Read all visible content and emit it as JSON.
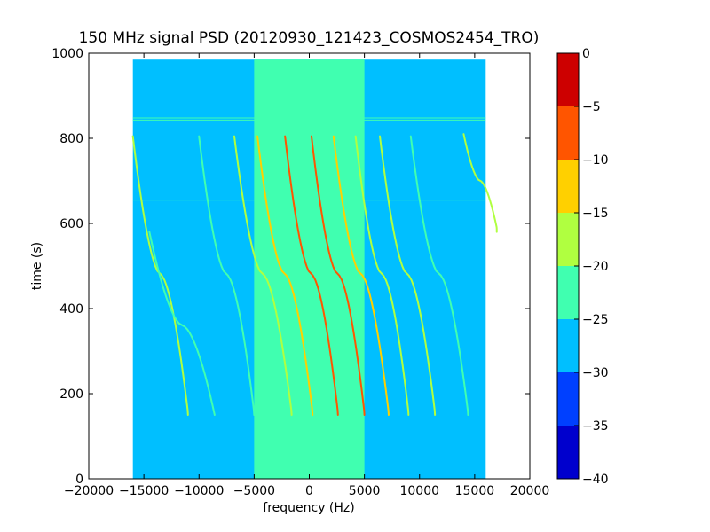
{
  "chart_data": {
    "type": "heatmap",
    "title": "150 MHz signal PSD (20120930_121423_COSMOS2454_TRO)",
    "xlabel": "frequency (Hz)",
    "ylabel": "time (s)",
    "xlim": [
      -20000,
      20000
    ],
    "ylim": [
      0,
      1000
    ],
    "xticks": [
      -20000,
      -15000,
      -10000,
      -5000,
      0,
      5000,
      10000,
      15000,
      20000
    ],
    "xtick_labels": [
      "−20000",
      "−15000",
      "−10000",
      "−5000",
      "0",
      "5000",
      "10000",
      "15000",
      "20000"
    ],
    "yticks": [
      0,
      200,
      400,
      600,
      800,
      1000
    ],
    "ytick_labels": [
      "0",
      "200",
      "400",
      "600",
      "800",
      "1000"
    ],
    "data_extent": {
      "x": [
        -16000,
        16000
      ],
      "y": [
        0,
        985
      ]
    },
    "background_level": -27.5,
    "central_band": {
      "x_range": [
        -5000,
        5000
      ],
      "level": -22.5
    },
    "colorbar": {
      "levels": [
        -40,
        -35,
        -30,
        -25,
        -20,
        -15,
        -10,
        -5,
        0
      ],
      "tick_labels": [
        "−40",
        "−35",
        "−30",
        "−25",
        "−20",
        "−15",
        "−10",
        "−5",
        "0"
      ],
      "colors": [
        "#0000cd",
        "#0040ff",
        "#00bfff",
        "#40ffb0",
        "#b0ff40",
        "#ffd000",
        "#ff5500",
        "#cd0000"
      ]
    },
    "horizontal_lines": [
      {
        "y": 655,
        "level": -22.5
      },
      {
        "y": 848,
        "level": -22.5
      },
      {
        "y": 843,
        "level": -22.5
      }
    ],
    "traces": [
      {
        "center_freq": -13500,
        "t_center": 480,
        "t_start": 150,
        "t_end": 805,
        "halfspan": 2500,
        "level": -17.5
      },
      {
        "center_freq": -11500,
        "t_center": 360,
        "t_start": 150,
        "t_end": 580,
        "halfspan": 3000,
        "level": -22.5
      },
      {
        "center_freq": -7500,
        "t_center": 480,
        "t_start": 150,
        "t_end": 805,
        "halfspan": 2500,
        "level": -22.5
      },
      {
        "center_freq": -4200,
        "t_center": 480,
        "t_start": 150,
        "t_end": 805,
        "halfspan": 2600,
        "level": -17.5
      },
      {
        "center_freq": -2200,
        "t_center": 480,
        "t_start": 150,
        "t_end": 805,
        "halfspan": 2500,
        "level": -12.5
      },
      {
        "center_freq": 200,
        "t_center": 480,
        "t_start": 150,
        "t_end": 805,
        "halfspan": 2400,
        "level": -7.5
      },
      {
        "center_freq": 2600,
        "t_center": 480,
        "t_start": 150,
        "t_end": 805,
        "halfspan": 2400,
        "level": -7.5
      },
      {
        "center_freq": 4700,
        "t_center": 480,
        "t_start": 150,
        "t_end": 805,
        "halfspan": 2500,
        "level": -12.5
      },
      {
        "center_freq": 6600,
        "t_center": 480,
        "t_start": 150,
        "t_end": 805,
        "halfspan": 2400,
        "level": -17.5
      },
      {
        "center_freq": 8900,
        "t_center": 480,
        "t_start": 150,
        "t_end": 805,
        "halfspan": 2500,
        "level": -17.5
      },
      {
        "center_freq": 11800,
        "t_center": 480,
        "t_start": 150,
        "t_end": 805,
        "halfspan": 2600,
        "level": -22.5
      },
      {
        "center_freq": 15500,
        "t_center": 700,
        "t_start": 580,
        "t_end": 810,
        "halfspan": 1500,
        "level": -17.5
      }
    ]
  }
}
